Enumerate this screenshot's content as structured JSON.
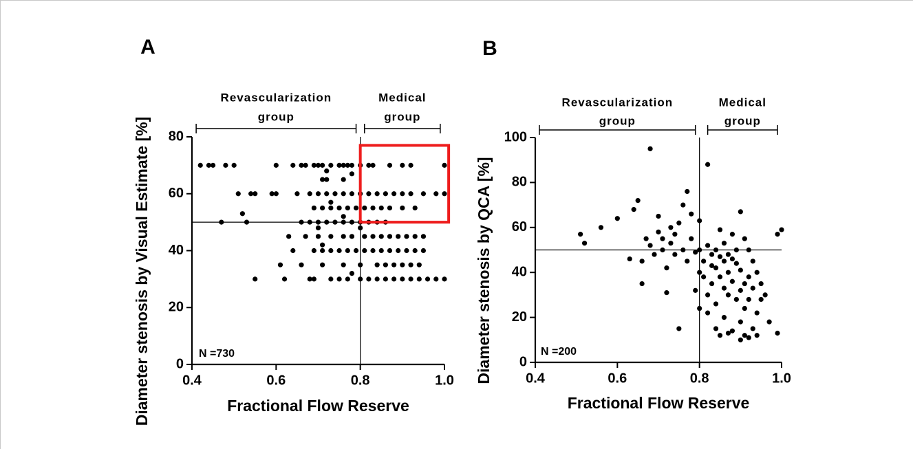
{
  "chart_data": [
    {
      "type": "scatter",
      "panel_label": "A",
      "color": "#000000",
      "xlabel": "Fractional Flow Reserve",
      "ylabel": "Diameter stenosis by Visual Estimate [%]",
      "xlim": [
        0.4,
        1.0
      ],
      "ylim": [
        0,
        80
      ],
      "xticks": [
        0.4,
        0.6,
        0.8,
        {
          "value": 1.0,
          "label": "1.0"
        }
      ],
      "yticks": [
        0,
        20,
        40,
        60,
        80
      ],
      "reference_lines": {
        "x": 0.8,
        "y": 50
      },
      "brackets": [
        {
          "lines": [
            "Revascularization",
            "group"
          ],
          "x": [
            0.41,
            0.79
          ]
        },
        {
          "lines": [
            "Medical",
            "group"
          ],
          "x": [
            0.81,
            0.99
          ]
        }
      ],
      "n_label": "N =730",
      "highlight": {
        "x": [
          0.8,
          1.01
        ],
        "y": [
          50,
          77
        ],
        "color": "#ee1c1c"
      },
      "x": [
        0.42,
        0.44,
        0.45,
        0.48,
        0.5,
        0.6,
        0.64,
        0.66,
        0.67,
        0.69,
        0.7,
        0.71,
        0.73,
        0.75,
        0.76,
        0.77,
        0.78,
        0.8,
        0.82,
        0.83,
        0.87,
        0.9,
        0.92,
        1.0,
        0.72,
        0.78,
        0.71,
        0.72,
        0.76,
        0.51,
        0.54,
        0.55,
        0.59,
        0.6,
        0.65,
        0.68,
        0.7,
        0.72,
        0.74,
        0.76,
        0.78,
        0.8,
        0.82,
        0.84,
        0.86,
        0.88,
        0.9,
        0.92,
        0.95,
        0.98,
        1.0,
        0.73,
        0.69,
        0.71,
        0.73,
        0.75,
        0.77,
        0.79,
        0.81,
        0.83,
        0.85,
        0.87,
        0.9,
        0.93,
        0.52,
        0.76,
        0.47,
        0.53,
        0.66,
        0.68,
        0.7,
        0.72,
        0.74,
        0.76,
        0.78,
        0.8,
        0.82,
        0.84,
        0.86,
        0.7,
        0.8,
        0.63,
        0.67,
        0.7,
        0.73,
        0.76,
        0.78,
        0.81,
        0.83,
        0.85,
        0.87,
        0.89,
        0.91,
        0.93,
        0.95,
        0.71,
        0.64,
        0.69,
        0.71,
        0.73,
        0.75,
        0.77,
        0.79,
        0.81,
        0.83,
        0.85,
        0.87,
        0.89,
        0.91,
        0.93,
        0.95,
        0.61,
        0.66,
        0.71,
        0.76,
        0.8,
        0.84,
        0.86,
        0.88,
        0.9,
        0.92,
        0.94,
        0.78,
        0.55,
        0.62,
        0.68,
        0.69,
        0.73,
        0.75,
        0.77,
        0.8,
        0.82,
        0.84,
        0.86,
        0.88,
        0.9,
        0.92,
        0.94,
        0.96,
        0.98,
        1.0
      ],
      "y": [
        70,
        70,
        70,
        70,
        70,
        70,
        70,
        70,
        70,
        70,
        70,
        70,
        70,
        70,
        70,
        70,
        70,
        70,
        70,
        70,
        70,
        70,
        70,
        70,
        68,
        67,
        65,
        65,
        65,
        60,
        60,
        60,
        60,
        60,
        60,
        60,
        60,
        60,
        60,
        60,
        60,
        60,
        60,
        60,
        60,
        60,
        60,
        60,
        60,
        60,
        60,
        57,
        55,
        55,
        55,
        55,
        55,
        55,
        55,
        55,
        55,
        55,
        55,
        55,
        53,
        52,
        50,
        50,
        50,
        50,
        50,
        50,
        50,
        50,
        50,
        50,
        50,
        50,
        50,
        48,
        48,
        45,
        45,
        45,
        45,
        45,
        45,
        45,
        45,
        45,
        45,
        45,
        45,
        45,
        45,
        42,
        40,
        40,
        40,
        40,
        40,
        40,
        40,
        40,
        40,
        40,
        40,
        40,
        40,
        40,
        40,
        35,
        35,
        35,
        35,
        35,
        35,
        35,
        35,
        35,
        35,
        35,
        32,
        30,
        30,
        30,
        30,
        30,
        30,
        30,
        30,
        30,
        30,
        30,
        30,
        30,
        30,
        30,
        30,
        30,
        30
      ]
    },
    {
      "type": "scatter",
      "panel_label": "B",
      "color": "#000000",
      "xlabel": "Fractional Flow Reserve",
      "ylabel": "Diameter stenosis by QCA [%]",
      "xlim": [
        0.4,
        1.0
      ],
      "ylim": [
        0,
        100
      ],
      "xticks": [
        0.4,
        0.6,
        0.8,
        {
          "value": 1.0,
          "label": "1.0"
        }
      ],
      "yticks": [
        0,
        20,
        40,
        60,
        80,
        100
      ],
      "reference_lines": {
        "x": 0.8,
        "y": 50
      },
      "brackets": [
        {
          "lines": [
            "Revascularization",
            "group"
          ],
          "x": [
            0.41,
            0.79
          ]
        },
        {
          "lines": [
            "Medical",
            "group"
          ],
          "x": [
            0.82,
            0.99
          ]
        }
      ],
      "n_label": "N =200",
      "x": [
        0.51,
        0.52,
        0.56,
        0.6,
        0.63,
        0.64,
        0.65,
        0.66,
        0.66,
        0.67,
        0.68,
        0.68,
        0.69,
        0.7,
        0.7,
        0.71,
        0.71,
        0.72,
        0.72,
        0.73,
        0.73,
        0.74,
        0.74,
        0.75,
        0.75,
        0.76,
        0.76,
        0.77,
        0.77,
        0.78,
        0.78,
        0.79,
        0.79,
        0.8,
        0.8,
        0.8,
        0.8,
        0.81,
        0.81,
        0.82,
        0.82,
        0.82,
        0.82,
        0.83,
        0.83,
        0.83,
        0.84,
        0.84,
        0.84,
        0.84,
        0.85,
        0.85,
        0.85,
        0.85,
        0.86,
        0.86,
        0.86,
        0.86,
        0.87,
        0.87,
        0.87,
        0.87,
        0.88,
        0.88,
        0.88,
        0.88,
        0.89,
        0.89,
        0.89,
        0.9,
        0.9,
        0.9,
        0.9,
        0.9,
        0.91,
        0.91,
        0.91,
        0.91,
        0.92,
        0.92,
        0.92,
        0.92,
        0.93,
        0.93,
        0.93,
        0.94,
        0.94,
        0.94,
        0.95,
        0.95,
        0.96,
        0.97,
        0.99,
        0.99,
        1.0
      ],
      "y": [
        57,
        53,
        60,
        64,
        46,
        68,
        72,
        35,
        45,
        55,
        95,
        52,
        48,
        58,
        65,
        50,
        55,
        31,
        42,
        60,
        53,
        57,
        48,
        15,
        62,
        70,
        50,
        76,
        45,
        55,
        66,
        49,
        32,
        63,
        50,
        40,
        24,
        45,
        38,
        88,
        30,
        52,
        22,
        43,
        48,
        35,
        50,
        42,
        26,
        15,
        59,
        47,
        38,
        12,
        53,
        45,
        33,
        20,
        48,
        40,
        30,
        13,
        57,
        46,
        36,
        14,
        50,
        44,
        28,
        67,
        41,
        32,
        18,
        10,
        55,
        35,
        24,
        12,
        50,
        38,
        28,
        11,
        45,
        33,
        15,
        40,
        22,
        12,
        35,
        28,
        30,
        18,
        57,
        13,
        59
      ]
    }
  ]
}
